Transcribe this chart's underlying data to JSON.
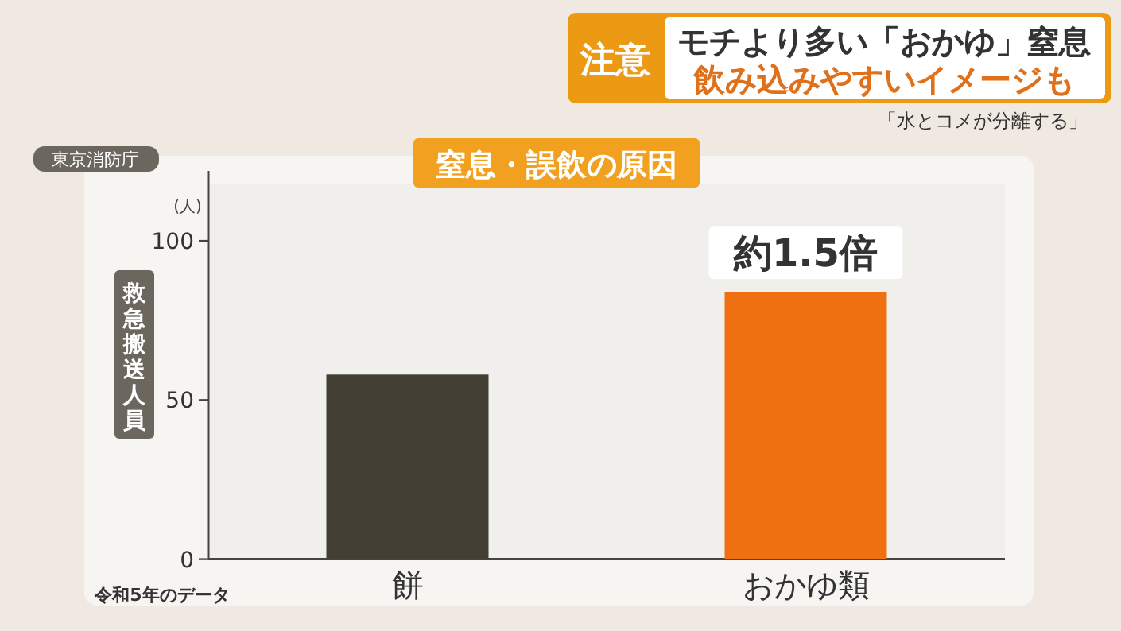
{
  "chart_data": {
    "type": "bar",
    "title": "窒息・誤飲の原因",
    "ylabel": "救急搬送人員",
    "categories": [
      "餅",
      "おかゆ類"
    ],
    "values": [
      58,
      84
    ],
    "colors": [
      "#433f35",
      "#ee7011"
    ],
    "ylim": [
      0,
      118
    ],
    "yticks": [
      0,
      50,
      100
    ],
    "grid": false,
    "annotations": [
      "注意",
      "モチより多い「おかゆ」窒息",
      "飲み込みやすいイメージも",
      "「水とコメが分離する」",
      "東京消防庁",
      "(人)",
      "令和5年のデータ",
      {
        "text": "約1.5倍",
        "x": "おかゆ類",
        "y": 84
      }
    ]
  }
}
